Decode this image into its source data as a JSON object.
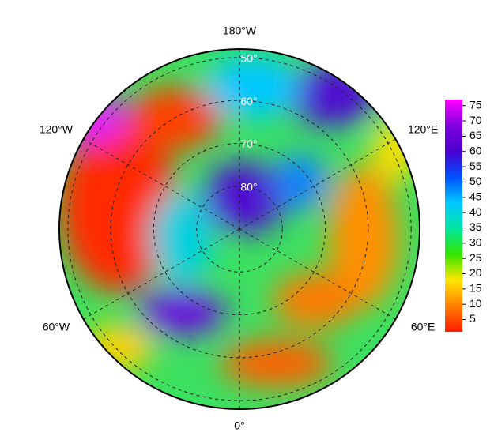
{
  "map": {
    "lat_lim": [
      48,
      90
    ],
    "lat_labels": [
      {
        "value": 50,
        "label": "50°"
      },
      {
        "value": 60,
        "label": "60°"
      },
      {
        "value": 70,
        "label": "70°"
      },
      {
        "value": 80,
        "label": "80°"
      }
    ],
    "lon_labels": [
      {
        "value": -180,
        "label": "180°W"
      },
      {
        "value": -120,
        "label": "120°W"
      },
      {
        "value": -60,
        "label": "60°W"
      },
      {
        "value": 0,
        "label": "0°"
      },
      {
        "value": 60,
        "label": "60°E"
      },
      {
        "value": 120,
        "label": "120°E"
      }
    ],
    "colorbar": {
      "lim": [
        1,
        77
      ],
      "ticks": [
        5,
        10,
        15,
        20,
        25,
        30,
        35,
        40,
        45,
        50,
        55,
        60,
        65,
        70,
        75
      ],
      "colors": [
        "#ff1a00",
        "#ff8000",
        "#ffe600",
        "#33e600",
        "#00e6a0",
        "#00c8ff",
        "#0050ff",
        "#4a00d0",
        "#8000e0",
        "#ff00ff"
      ]
    }
  }
}
